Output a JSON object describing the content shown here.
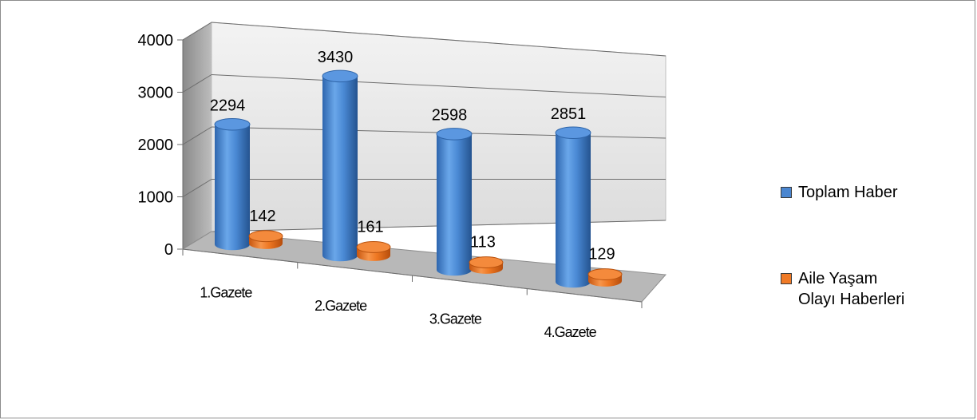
{
  "chart_data": {
    "type": "bar",
    "style": "3d-cylinder",
    "categories": [
      "1.Gazete",
      "2.Gazete",
      "3.Gazete",
      "4.Gazete"
    ],
    "series": [
      {
        "name": "Toplam Haber",
        "values": [
          2294,
          3430,
          2598,
          2851
        ],
        "color": "#4a86d0"
      },
      {
        "name": "Aile Yaşam Olayı Haberleri",
        "values": [
          142,
          161,
          113,
          129
        ],
        "color": "#f07a26"
      }
    ],
    "y_ticks": [
      "0",
      "1000",
      "2000",
      "3000",
      "4000"
    ],
    "ylim": [
      0,
      4000
    ],
    "grid": true,
    "legend": "right"
  }
}
